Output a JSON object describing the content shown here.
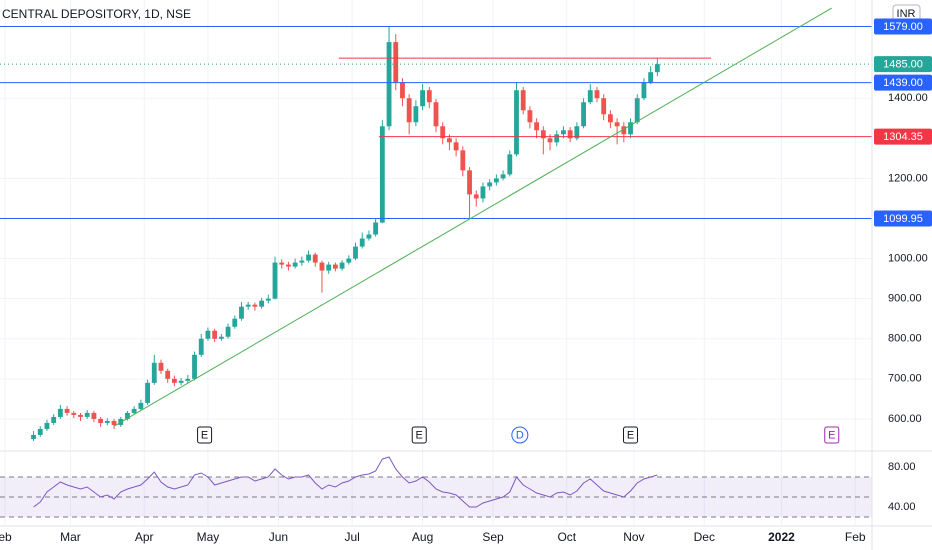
{
  "chart_data": [
    {
      "type": "candlestick",
      "title": "CENTRAL DEPOSITORY, 1D, NSE",
      "currency": "INR",
      "x": [
        10,
        12,
        14,
        16,
        18,
        20,
        22,
        24,
        26,
        28,
        30,
        32,
        34,
        36,
        38,
        40,
        42,
        44,
        46,
        48,
        50,
        52,
        54,
        56,
        58,
        60,
        62,
        64,
        66,
        68,
        70,
        72,
        74,
        76,
        78,
        80,
        82,
        84,
        86,
        88,
        90,
        92,
        94,
        96,
        98,
        100,
        102,
        104,
        106,
        108,
        110,
        112,
        114,
        116,
        118,
        120,
        122,
        124,
        126,
        128,
        130,
        132,
        134,
        136,
        138,
        140,
        142,
        144,
        146,
        148,
        150,
        152,
        154,
        156,
        158,
        160,
        162,
        164,
        166,
        168,
        170,
        172,
        174,
        176,
        178,
        180,
        182,
        184,
        186,
        188,
        190,
        192,
        194,
        196
      ],
      "open": [
        550,
        560,
        575,
        590,
        605,
        625,
        615,
        610,
        605,
        615,
        600,
        590,
        595,
        585,
        600,
        615,
        625,
        640,
        690,
        740,
        720,
        700,
        690,
        695,
        700,
        760,
        800,
        820,
        800,
        805,
        830,
        850,
        880,
        885,
        880,
        895,
        900,
        990,
        985,
        980,
        990,
        995,
        1010,
        990,
        970,
        985,
        975,
        990,
        1000,
        1030,
        1050,
        1060,
        1090,
        1330,
        1540,
        1440,
        1400,
        1340,
        1380,
        1420,
        1390,
        1330,
        1300,
        1290,
        1270,
        1220,
        1160,
        1150,
        1180,
        1190,
        1200,
        1210,
        1260,
        1420,
        1370,
        1340,
        1320,
        1300,
        1290,
        1310,
        1320,
        1300,
        1330,
        1390,
        1420,
        1400,
        1360,
        1340,
        1330,
        1310,
        1340,
        1400,
        1440,
        1465
      ],
      "high": [
        570,
        582,
        598,
        612,
        635,
        632,
        620,
        615,
        622,
        620,
        605,
        602,
        600,
        605,
        620,
        632,
        648,
        698,
        760,
        748,
        725,
        708,
        702,
        710,
        768,
        812,
        828,
        825,
        812,
        838,
        858,
        892,
        892,
        890,
        902,
        910,
        1005,
        998,
        992,
        1000,
        1005,
        1020,
        1015,
        995,
        992,
        990,
        996,
        1008,
        1040,
        1065,
        1070,
        1100,
        1345,
        1579,
        1560,
        1450,
        1410,
        1395,
        1435,
        1428,
        1398,
        1340,
        1310,
        1300,
        1280,
        1228,
        1170,
        1190,
        1198,
        1210,
        1220,
        1270,
        1440,
        1428,
        1380,
        1350,
        1330,
        1310,
        1320,
        1330,
        1328,
        1340,
        1400,
        1435,
        1428,
        1410,
        1370,
        1350,
        1340,
        1350,
        1410,
        1450,
        1480,
        1500
      ],
      "low": [
        545,
        555,
        570,
        585,
        600,
        608,
        602,
        595,
        600,
        592,
        580,
        584,
        575,
        580,
        596,
        610,
        620,
        635,
        685,
        712,
        690,
        682,
        684,
        688,
        696,
        755,
        795,
        792,
        795,
        800,
        825,
        845,
        872,
        870,
        875,
        888,
        898,
        975,
        970,
        975,
        982,
        990,
        980,
        915,
        962,
        968,
        970,
        985,
        996,
        1025,
        1045,
        1055,
        1088,
        1320,
        1420,
        1380,
        1310,
        1330,
        1370,
        1375,
        1315,
        1285,
        1270,
        1255,
        1205,
        1099.95,
        1130,
        1140,
        1170,
        1182,
        1195,
        1205,
        1255,
        1360,
        1325,
        1300,
        1260,
        1270,
        1280,
        1300,
        1290,
        1295,
        1325,
        1385,
        1390,
        1345,
        1325,
        1285,
        1290,
        1300,
        1335,
        1395,
        1435,
        1455
      ],
      "close": [
        560,
        575,
        590,
        605,
        625,
        615,
        610,
        605,
        615,
        600,
        590,
        595,
        585,
        600,
        615,
        625,
        640,
        690,
        740,
        720,
        700,
        690,
        695,
        700,
        760,
        800,
        820,
        800,
        805,
        830,
        850,
        880,
        885,
        880,
        895,
        900,
        990,
        985,
        980,
        990,
        995,
        1010,
        990,
        970,
        985,
        975,
        990,
        1000,
        1030,
        1050,
        1060,
        1090,
        1330,
        1540,
        1440,
        1400,
        1340,
        1380,
        1420,
        1390,
        1330,
        1300,
        1290,
        1270,
        1220,
        1160,
        1150,
        1180,
        1190,
        1200,
        1210,
        1260,
        1420,
        1370,
        1340,
        1320,
        1300,
        1290,
        1310,
        1320,
        1300,
        1330,
        1390,
        1420,
        1400,
        1360,
        1340,
        1330,
        1310,
        1340,
        1400,
        1440,
        1465,
        1485
      ],
      "up_color": "#26a69a",
      "down_color": "#ef5350",
      "xlim": [
        0,
        260
      ],
      "ylim": [
        520,
        1645
      ],
      "yticks": [
        {
          "value": 600,
          "label": "600.00"
        },
        {
          "value": 700,
          "label": "700.00"
        },
        {
          "value": 800,
          "label": "800.00"
        },
        {
          "value": 900,
          "label": "900.00"
        },
        {
          "value": 1000,
          "label": "1000.00"
        },
        {
          "value": 1200,
          "label": "1200.00"
        },
        {
          "value": 1400,
          "label": "1400.00"
        }
      ],
      "xticks": [
        {
          "value": 1.5,
          "label": "eb"
        },
        {
          "value": 21,
          "label": "Mar"
        },
        {
          "value": 43,
          "label": "Apr"
        },
        {
          "value": 62,
          "label": "May"
        },
        {
          "value": 83,
          "label": "Jun"
        },
        {
          "value": 105,
          "label": "Jul"
        },
        {
          "value": 126,
          "label": "Aug"
        },
        {
          "value": 147,
          "label": "Sep"
        },
        {
          "value": 169,
          "label": "Oct"
        },
        {
          "value": 189,
          "label": "Nov"
        },
        {
          "value": 210,
          "label": "Dec"
        },
        {
          "value": 233,
          "label": "2022"
        },
        {
          "value": 255,
          "label": "Feb"
        }
      ],
      "grid": true,
      "hlines": [
        {
          "value": 1579,
          "label": "1579.00",
          "color": "#2962ff"
        },
        {
          "value": 1485,
          "label": "1485.00",
          "color": "#26a69a",
          "dotted": true
        },
        {
          "value": 1439,
          "label": "1439.00",
          "color": "#2962ff"
        },
        {
          "value": 1304.35,
          "label": "1304.35",
          "color": "#f23645",
          "from": 113
        },
        {
          "value": 1099.95,
          "label": "1099.95",
          "color": "#2962ff"
        },
        {
          "value": 1500,
          "color": "#f23645",
          "from": 101,
          "to": 212
        }
      ],
      "trendline": {
        "x": [
          34,
          248
        ],
        "y": [
          582,
          1625
        ],
        "color": "#4caf50"
      },
      "events": [
        {
          "x": 61,
          "label": "E",
          "color": "#131722",
          "shape": "box"
        },
        {
          "x": 125,
          "label": "E",
          "color": "#131722",
          "shape": "box"
        },
        {
          "x": 155,
          "label": "D",
          "color": "#2962ff",
          "shape": "circle"
        },
        {
          "x": 188,
          "label": "E",
          "color": "#131722",
          "shape": "box"
        },
        {
          "x": 248,
          "label": "E",
          "color": "#9c27b0",
          "shape": "box"
        }
      ]
    },
    {
      "type": "line",
      "x": [
        10,
        12,
        14,
        16,
        18,
        20,
        22,
        24,
        26,
        28,
        30,
        32,
        34,
        36,
        38,
        40,
        42,
        44,
        46,
        48,
        50,
        52,
        54,
        56,
        58,
        60,
        62,
        64,
        66,
        68,
        70,
        72,
        74,
        76,
        78,
        80,
        82,
        84,
        86,
        88,
        90,
        92,
        94,
        96,
        98,
        100,
        102,
        104,
        106,
        108,
        110,
        112,
        114,
        116,
        118,
        120,
        122,
        124,
        126,
        128,
        130,
        132,
        134,
        136,
        138,
        140,
        142,
        144,
        146,
        148,
        150,
        152,
        154,
        156,
        158,
        160,
        162,
        164,
        166,
        168,
        170,
        172,
        174,
        176,
        178,
        180,
        182,
        184,
        186,
        188,
        190,
        192,
        194,
        196
      ],
      "values": [
        40,
        45,
        55,
        60,
        65,
        62,
        60,
        58,
        60,
        55,
        50,
        52,
        48,
        55,
        58,
        60,
        62,
        68,
        75,
        65,
        60,
        58,
        60,
        62,
        72,
        74,
        70,
        62,
        64,
        66,
        68,
        70,
        70,
        66,
        68,
        70,
        78,
        72,
        68,
        70,
        70,
        72,
        64,
        58,
        62,
        60,
        64,
        66,
        70,
        72,
        73,
        76,
        88,
        90,
        78,
        70,
        64,
        66,
        70,
        65,
        58,
        55,
        54,
        52,
        46,
        40,
        40,
        44,
        46,
        48,
        50,
        55,
        70,
        62,
        58,
        54,
        52,
        50,
        54,
        55,
        52,
        56,
        64,
        68,
        62,
        56,
        54,
        52,
        50,
        56,
        64,
        68,
        70,
        72
      ],
      "color": "#7e57c2",
      "xlim": [
        0,
        260
      ],
      "ylim": [
        22,
        95
      ],
      "yticks": [
        {
          "value": 40,
          "label": "40.00"
        },
        {
          "value": 80,
          "label": "80.00"
        }
      ],
      "levels": [
        30,
        50,
        70
      ]
    }
  ]
}
